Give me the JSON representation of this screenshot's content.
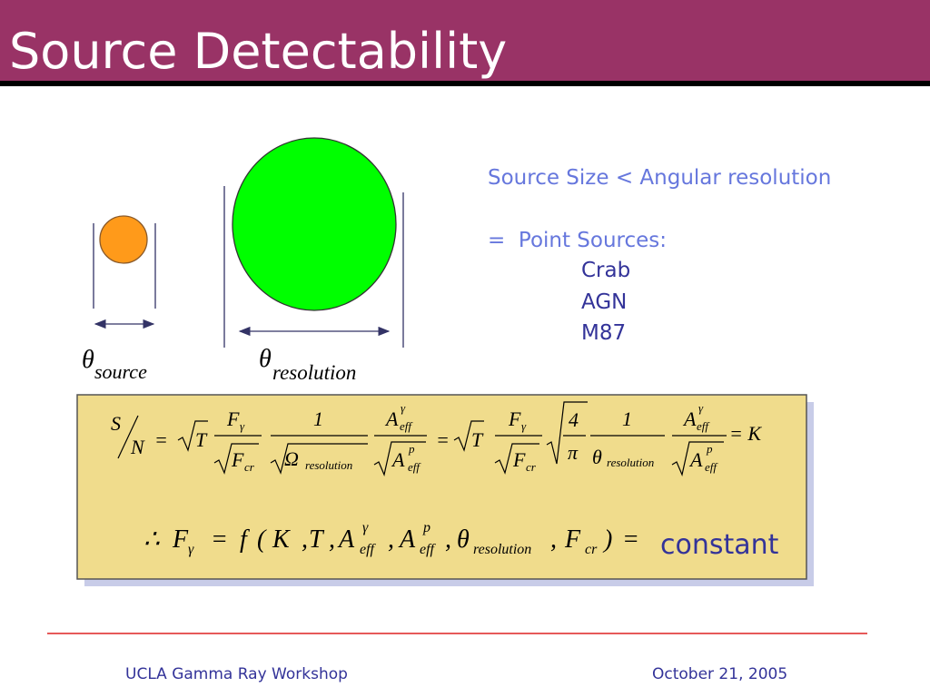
{
  "header": {
    "title": "Source Detectability"
  },
  "diagram": {
    "source_label": {
      "symbol": "θ",
      "subscript": "source"
    },
    "resolution_label": {
      "symbol": "θ",
      "subscript": "resolution"
    }
  },
  "text": {
    "lines": [
      "Source Size < Angular resolution",
      "=  Point Sources:"
    ],
    "items": [
      "Crab",
      "AGN",
      "M87"
    ]
  },
  "equation_1": [
    "S",
    "N",
    "=",
    "T",
    "F",
    "γ",
    "F",
    "cr",
    "1",
    "Ω",
    "resolution",
    "A",
    "γ",
    "eff",
    "A",
    "p",
    "eff",
    "=",
    "T",
    "F",
    "γ",
    "F",
    "cr",
    "4",
    "π",
    "1",
    "θ",
    "resolution",
    "A",
    "γ",
    "eff",
    "A",
    "p",
    "eff",
    "= K"
  ],
  "equation_2": [
    "∴",
    "F",
    "γ",
    "=",
    "f",
    "(",
    "K",
    ",",
    "T",
    ",",
    "A",
    "γ",
    "eff",
    ",",
    "A",
    "p",
    "eff",
    ",",
    "θ",
    "resolution",
    ",",
    "F",
    "cr",
    ")",
    "="
  ],
  "equation_2_result": "constant",
  "footer": {
    "left": "UCLA Gamma Ray Workshop",
    "right": "October 21, 2005"
  }
}
